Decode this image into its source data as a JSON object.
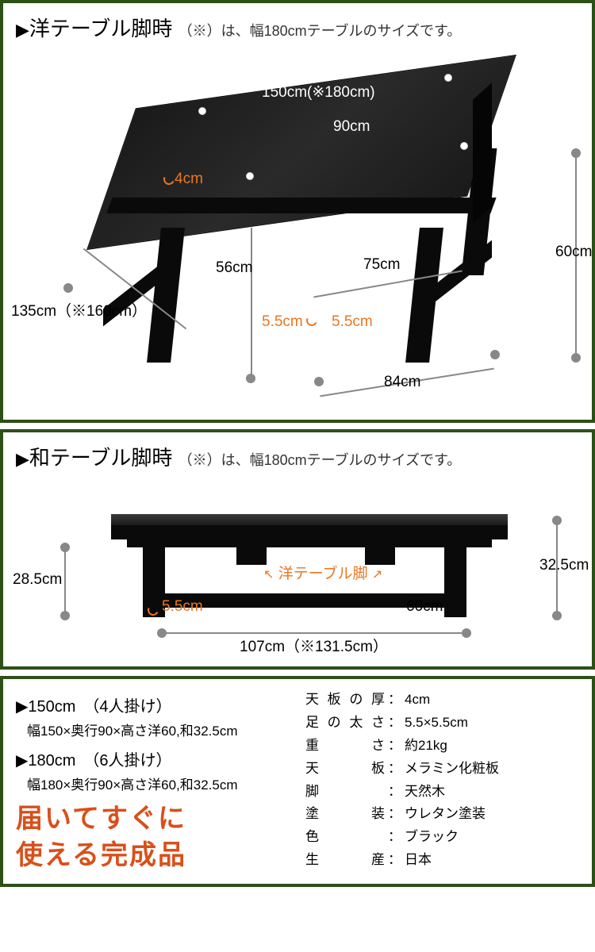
{
  "panel1": {
    "title": "洋テーブル脚時",
    "subtitle": "（※）は、幅180cmテーブルのサイズです。",
    "dims": {
      "top_width": "150cm(※180cm)",
      "top_depth": "90cm",
      "top_thick": "4cm",
      "height_total": "60cm",
      "height_under": "56cm",
      "leg_inner": "75cm",
      "leg_thick1": "5.5cm",
      "leg_thick2": "5.5cm",
      "bottom_width": "84cm",
      "bottom_diag": "135cm（※160cm）"
    }
  },
  "panel2": {
    "title": "和テーブル脚時",
    "subtitle": "（※）は、幅180cmテーブルのサイズです。",
    "dims": {
      "height_left": "28.5cm",
      "height_right": "32.5cm",
      "leg_thick": "5.5cm",
      "stub_label": "洋テーブル脚",
      "under_depth": "60cm",
      "bottom_width": "107cm（※131.5cm）"
    }
  },
  "panel3": {
    "size150_head": "▶150cm　（4人掛け）",
    "size150_detail": "幅150×奥行90×高さ洋60,和32.5cm",
    "size180_head": "▶180cm　（6人掛け）",
    "size180_detail": "幅180×奥行90×高さ洋60,和32.5cm",
    "callout_l1": "届いてすぐに",
    "callout_l2": "使える完成品",
    "specs": [
      {
        "label": "天板の厚",
        "value": "4cm"
      },
      {
        "label": "足の太さ",
        "value": "5.5×5.5cm"
      },
      {
        "label": "重　　さ",
        "value": "約21kg"
      },
      {
        "label": "天　　板",
        "value": "メラミン化粧板"
      },
      {
        "label": "脚",
        "value": "天然木"
      },
      {
        "label": "塗　　装",
        "value": "ウレタン塗装"
      },
      {
        "label": "色",
        "value": "ブラック"
      },
      {
        "label": "生　　産",
        "value": "日本"
      }
    ]
  },
  "colors": {
    "border": "#2d5016",
    "orange": "#e87722",
    "callout": "#d94f1a",
    "table": "#0a0a0a"
  }
}
